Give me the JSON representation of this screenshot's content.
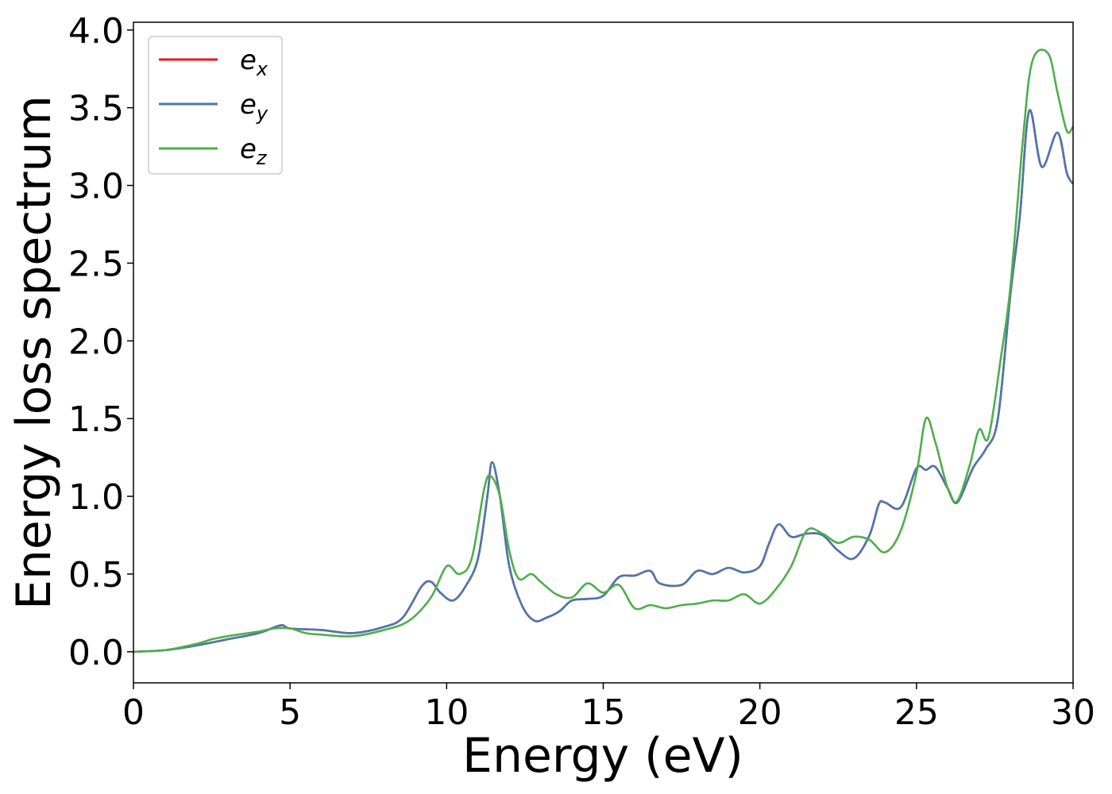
{
  "chart_data": {
    "type": "line",
    "title": "",
    "xlabel": "Energy (eV)",
    "ylabel": "Energy loss spectrum",
    "xlim": [
      0,
      30
    ],
    "ylim": [
      -0.2,
      4.05
    ],
    "xticks": [
      "0",
      "5",
      "10",
      "15",
      "20",
      "25",
      "30"
    ],
    "yticks": [
      "0.0",
      "0.5",
      "1.0",
      "1.5",
      "2.0",
      "2.5",
      "3.0",
      "3.5",
      "4.0"
    ],
    "grid": false,
    "legend_position": "top-left",
    "series": [
      {
        "name": "e_x",
        "legend_main": "e",
        "legend_sub": "x",
        "color": "#e41a1c",
        "x": [
          0,
          1,
          2,
          3,
          4,
          4.7,
          5,
          6,
          7,
          8,
          8.6,
          9.2,
          9.5,
          9.8,
          10.2,
          10.6,
          11.0,
          11.3,
          11.45,
          11.7,
          12.0,
          12.4,
          12.8,
          13.2,
          13.6,
          14.0,
          14.5,
          15.0,
          15.5,
          16.0,
          16.5,
          16.8,
          17.5,
          18.0,
          18.5,
          19.0,
          19.5,
          20.0,
          20.3,
          20.6,
          21.0,
          21.5,
          22.0,
          22.5,
          23.0,
          23.5,
          23.8,
          24.0,
          24.5,
          25.0,
          25.3,
          25.6,
          26.0,
          26.3,
          26.8,
          27.2,
          27.6,
          28.0,
          28.3,
          28.6,
          29.0,
          29.5,
          29.8,
          30.0
        ],
        "values": [
          0.0,
          0.01,
          0.04,
          0.08,
          0.12,
          0.17,
          0.15,
          0.14,
          0.12,
          0.16,
          0.22,
          0.42,
          0.45,
          0.38,
          0.33,
          0.42,
          0.6,
          1.0,
          1.22,
          1.0,
          0.55,
          0.3,
          0.2,
          0.22,
          0.26,
          0.33,
          0.34,
          0.36,
          0.48,
          0.49,
          0.52,
          0.44,
          0.43,
          0.52,
          0.5,
          0.54,
          0.51,
          0.55,
          0.7,
          0.82,
          0.74,
          0.76,
          0.75,
          0.65,
          0.6,
          0.75,
          0.95,
          0.96,
          0.93,
          1.18,
          1.17,
          1.19,
          1.05,
          0.96,
          1.18,
          1.3,
          1.5,
          2.3,
          2.8,
          3.48,
          3.12,
          3.34,
          3.08,
          3.01
        ]
      },
      {
        "name": "e_y",
        "legend_main": "e",
        "legend_sub": "y",
        "color": "#4a77b0",
        "x": [
          0,
          1,
          2,
          3,
          4,
          4.7,
          5,
          6,
          7,
          8,
          8.6,
          9.2,
          9.5,
          9.8,
          10.2,
          10.6,
          11.0,
          11.3,
          11.45,
          11.7,
          12.0,
          12.4,
          12.8,
          13.2,
          13.6,
          14.0,
          14.5,
          15.0,
          15.5,
          16.0,
          16.5,
          16.8,
          17.5,
          18.0,
          18.5,
          19.0,
          19.5,
          20.0,
          20.3,
          20.6,
          21.0,
          21.5,
          22.0,
          22.5,
          23.0,
          23.5,
          23.8,
          24.0,
          24.5,
          25.0,
          25.3,
          25.6,
          26.0,
          26.3,
          26.8,
          27.2,
          27.6,
          28.0,
          28.3,
          28.6,
          29.0,
          29.5,
          29.8,
          30.0
        ],
        "values": [
          0.0,
          0.01,
          0.04,
          0.08,
          0.12,
          0.17,
          0.15,
          0.14,
          0.12,
          0.16,
          0.22,
          0.42,
          0.45,
          0.38,
          0.33,
          0.42,
          0.6,
          1.0,
          1.22,
          1.0,
          0.55,
          0.3,
          0.2,
          0.22,
          0.26,
          0.33,
          0.34,
          0.36,
          0.48,
          0.49,
          0.52,
          0.44,
          0.43,
          0.52,
          0.5,
          0.54,
          0.51,
          0.55,
          0.7,
          0.82,
          0.74,
          0.76,
          0.75,
          0.65,
          0.6,
          0.75,
          0.95,
          0.96,
          0.93,
          1.18,
          1.17,
          1.19,
          1.05,
          0.96,
          1.18,
          1.3,
          1.5,
          2.3,
          2.8,
          3.48,
          3.12,
          3.34,
          3.08,
          3.01
        ]
      },
      {
        "name": "e_z",
        "legend_main": "e",
        "legend_sub": "z",
        "color": "#4daf4a",
        "x": [
          0,
          1,
          2,
          2.5,
          3,
          4,
          4.5,
          5,
          5.5,
          6,
          7,
          8,
          8.8,
          9.5,
          10.0,
          10.4,
          10.8,
          11.2,
          11.4,
          11.7,
          12.0,
          12.3,
          12.7,
          13.0,
          13.5,
          14.0,
          14.5,
          15.0,
          15.5,
          16.0,
          16.5,
          17.0,
          17.5,
          18.0,
          18.5,
          19.0,
          19.5,
          20.0,
          20.5,
          21.0,
          21.5,
          22.0,
          22.5,
          23.0,
          23.5,
          24.0,
          24.5,
          25.0,
          25.3,
          25.6,
          26.0,
          26.3,
          26.7,
          27.0,
          27.3,
          27.7,
          28.0,
          28.4,
          28.7,
          29.2,
          29.5,
          29.8,
          30.0
        ],
        "values": [
          0.0,
          0.01,
          0.05,
          0.08,
          0.1,
          0.13,
          0.15,
          0.15,
          0.12,
          0.11,
          0.1,
          0.14,
          0.2,
          0.35,
          0.55,
          0.5,
          0.6,
          1.05,
          1.13,
          1.0,
          0.65,
          0.47,
          0.5,
          0.45,
          0.37,
          0.35,
          0.44,
          0.38,
          0.43,
          0.28,
          0.3,
          0.28,
          0.3,
          0.31,
          0.33,
          0.33,
          0.37,
          0.31,
          0.4,
          0.55,
          0.78,
          0.76,
          0.7,
          0.74,
          0.72,
          0.64,
          0.78,
          1.15,
          1.5,
          1.35,
          1.05,
          0.97,
          1.2,
          1.43,
          1.38,
          1.9,
          2.35,
          3.3,
          3.8,
          3.85,
          3.6,
          3.35,
          3.38
        ]
      }
    ]
  }
}
